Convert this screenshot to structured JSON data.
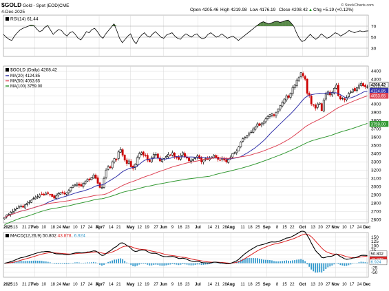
{
  "header": {
    "symbol": "$GOLD",
    "name": "Gold - Spot (EOD)",
    "exchange": "CME",
    "date": "4-Dec-2025",
    "open_label": "Open",
    "open": "4205.46",
    "high_label": "High",
    "high": "4219.98",
    "low_label": "Low",
    "low": "4176.19",
    "close_label": "Close",
    "close": "4208.42",
    "chg_label": "Chg",
    "chg": "+5.19 (+0.12%)",
    "chg_arrow": "▲",
    "watermark": "© StockCharts.com"
  },
  "colors": {
    "candle_up": "#000000",
    "candle_down": "#cc0000",
    "ma20": "#3333aa",
    "ma50": "#dd4455",
    "ma100": "#339933",
    "rsi_fill": "#5a8a4a",
    "macd_line": "#000000",
    "macd_signal": "#dd2222",
    "histogram": "#3399cc",
    "grid": "#d8d8d8"
  },
  "chart_data": [
    {
      "type": "line",
      "panel": "rsi",
      "legend": "RSI(14) 61.44",
      "last_value": 61.44,
      "ylim": [
        15,
        90
      ],
      "y_ticks": [
        70,
        50,
        30
      ],
      "overbought": 70,
      "oversold": 30,
      "x": [
        0,
        4,
        8,
        12,
        16,
        20,
        24,
        28,
        32,
        36,
        40,
        44,
        48,
        52,
        56,
        60,
        64,
        68,
        72,
        76,
        80,
        84,
        88,
        92,
        96,
        100,
        104,
        108,
        112,
        116,
        120,
        124,
        128,
        132,
        136,
        140,
        144,
        148,
        152,
        156,
        160,
        164,
        168,
        172,
        176,
        180,
        184,
        188,
        192,
        196,
        200,
        204,
        208,
        212,
        216,
        220,
        224,
        228,
        232,
        236,
        240,
        244,
        248,
        252,
        256,
        260,
        264,
        268,
        272,
        276,
        280,
        284,
        288,
        292,
        296,
        300,
        304,
        308,
        312,
        316,
        320,
        324,
        328,
        332,
        336,
        340,
        344,
        348,
        352,
        356,
        360,
        364,
        368,
        372,
        376,
        380,
        384,
        388,
        392,
        396,
        400,
        404,
        408,
        412,
        416,
        420,
        424,
        428,
        432,
        436,
        440,
        444,
        448,
        452,
        456,
        460,
        464,
        468,
        472,
        476,
        480,
        484,
        488,
        492,
        496,
        500,
        504,
        508,
        512,
        516,
        520,
        524,
        528
      ],
      "values": [
        55,
        50,
        46,
        44,
        52,
        58,
        63,
        66,
        68,
        70,
        72,
        71,
        65,
        60,
        62,
        68,
        71,
        63,
        55,
        60,
        64,
        62,
        56,
        52,
        58,
        60,
        55,
        48,
        45,
        52,
        60,
        58,
        64,
        66,
        60,
        52,
        48,
        56,
        62,
        68,
        74,
        62,
        48,
        40,
        46,
        52,
        56,
        44,
        38,
        48,
        54,
        58,
        52,
        50,
        56,
        60,
        55,
        50,
        48,
        54,
        56,
        58,
        52,
        48,
        46,
        52,
        56,
        53,
        50,
        54,
        56,
        50,
        47,
        49,
        55,
        58,
        54,
        50,
        52,
        56,
        52,
        48,
        50,
        52,
        48,
        44,
        48,
        52,
        56,
        60,
        64,
        68,
        72,
        76,
        78,
        76,
        74,
        76,
        78,
        79,
        77,
        78,
        80,
        81,
        76,
        70,
        58,
        48,
        42,
        44,
        50,
        55,
        50,
        46,
        50,
        56,
        52,
        48,
        50,
        54,
        58,
        56,
        52,
        55,
        58,
        62,
        60,
        58,
        60,
        61.44,
        60,
        61,
        61.44
      ]
    },
    {
      "type": "candlestick",
      "panel": "price",
      "title": "$GOLD (Daily) 4208.42",
      "last_value": 4208.42,
      "ylim": [
        2560,
        4460
      ],
      "y_ticks": [
        2600,
        2700,
        2800,
        2900,
        3000,
        3100,
        3200,
        3300,
        3400,
        3500,
        3600,
        3700,
        3800,
        3900,
        4000,
        4100,
        4200,
        4300,
        4400
      ],
      "x_ticks": [
        "2025",
        "13",
        "21",
        "27",
        "Feb",
        "10",
        "18",
        "24",
        "Mar",
        "10",
        "17",
        "24",
        "31",
        "Apr",
        "7",
        "14",
        "21",
        "May",
        "12",
        "19",
        "27",
        "Jun",
        "9",
        "16",
        "23",
        "Jul",
        "14",
        "21",
        "28",
        "Aug",
        "11",
        "18",
        "25",
        "Sep",
        "8",
        "15",
        "22",
        "Oct",
        "13",
        "20",
        "27",
        "Nov",
        "10",
        "17",
        "24",
        "Dec"
      ],
      "x_tick_days": [
        0,
        8,
        14,
        18,
        21,
        27,
        33,
        37,
        42,
        48,
        53,
        58,
        63,
        64,
        67,
        72,
        77,
        85,
        91,
        96,
        102,
        107,
        113,
        118,
        123,
        130,
        138,
        143,
        148,
        152,
        160,
        165,
        170,
        176,
        183,
        188,
        193,
        200,
        207,
        212,
        217,
        222,
        228,
        233,
        238,
        243
      ],
      "closes": [
        2625,
        2655,
        2665,
        2690,
        2700,
        2725,
        2740,
        2760,
        2765,
        2750,
        2780,
        2800,
        2810,
        2835,
        2855,
        2870,
        2880,
        2900,
        2905,
        2895,
        2920,
        2915,
        2905,
        2880,
        2860,
        2890,
        2915,
        2925,
        2930,
        2910,
        2925,
        2950,
        2990,
        3010,
        3025,
        3030,
        3015,
        3005,
        3040,
        3060,
        3085,
        3080,
        3110,
        3140,
        3100,
        3040,
        2990,
        2990,
        3100,
        3200,
        3240,
        3230,
        3300,
        3340,
        3330,
        3420,
        3450,
        3380,
        3320,
        3280,
        3310,
        3240,
        3220,
        3270,
        3350,
        3400,
        3410,
        3380,
        3380,
        3320,
        3300,
        3350,
        3390,
        3390,
        3350,
        3310,
        3330,
        3340,
        3365,
        3390,
        3380,
        3410,
        3360,
        3350,
        3330,
        3380,
        3410,
        3360,
        3345,
        3310,
        3320,
        3330,
        3350,
        3370,
        3340,
        3300,
        3320,
        3340,
        3330,
        3340,
        3360,
        3380,
        3350,
        3330,
        3320,
        3340,
        3320,
        3300,
        3330,
        3350,
        3400,
        3410,
        3430,
        3480,
        3540,
        3580,
        3600,
        3620,
        3650,
        3660,
        3700,
        3720,
        3760,
        3740,
        3760,
        3780,
        3820,
        3850,
        3870,
        3880,
        3860,
        3900,
        3940,
        3980,
        4020,
        4060,
        4100,
        4080,
        4130,
        4200,
        4230,
        4290,
        4320,
        4380,
        4340,
        4300,
        4130,
        4100,
        4000,
        3990,
        3950,
        4000,
        4010,
        3920,
        4050,
        4120,
        4150,
        4110,
        4140,
        4190,
        4230,
        4100,
        4060,
        4070,
        4050,
        4080,
        4130,
        4150,
        4180,
        4160,
        4200,
        4230,
        4250,
        4220,
        4210,
        4208.42
      ],
      "series": [
        {
          "name": "MA(20) 4124.85",
          "last_value": 4124.85
        },
        {
          "name": "MA(50) 4053.65",
          "last_value": 4053.65
        },
        {
          "name": "MA(100) 3759.00",
          "last_value": 3759.0
        }
      ]
    },
    {
      "type": "line",
      "panel": "macd",
      "legend_prefix": "MACD(12,26,9)",
      "macd_last": 50.802,
      "signal_last": 43.878,
      "histogram_last": 6.924,
      "ylim": [
        -80,
        175
      ],
      "y_ticks": [
        150,
        125,
        100,
        75,
        50,
        25,
        0,
        -25,
        -50
      ],
      "x_ticks": [
        "2025",
        "13",
        "21",
        "27",
        "Feb",
        "10",
        "18",
        "24",
        "Mar",
        "10",
        "17",
        "24",
        "31",
        "Apr",
        "7",
        "14",
        "21",
        "May",
        "12",
        "19",
        "27",
        "Jun",
        "9",
        "16",
        "23",
        "Jul",
        "14",
        "21",
        "28",
        "Aug",
        "11",
        "18",
        "25",
        "Sep",
        "8",
        "15",
        "22",
        "Oct",
        "13",
        "20",
        "27",
        "Nov",
        "10",
        "17",
        "24",
        "Dec"
      ]
    }
  ]
}
